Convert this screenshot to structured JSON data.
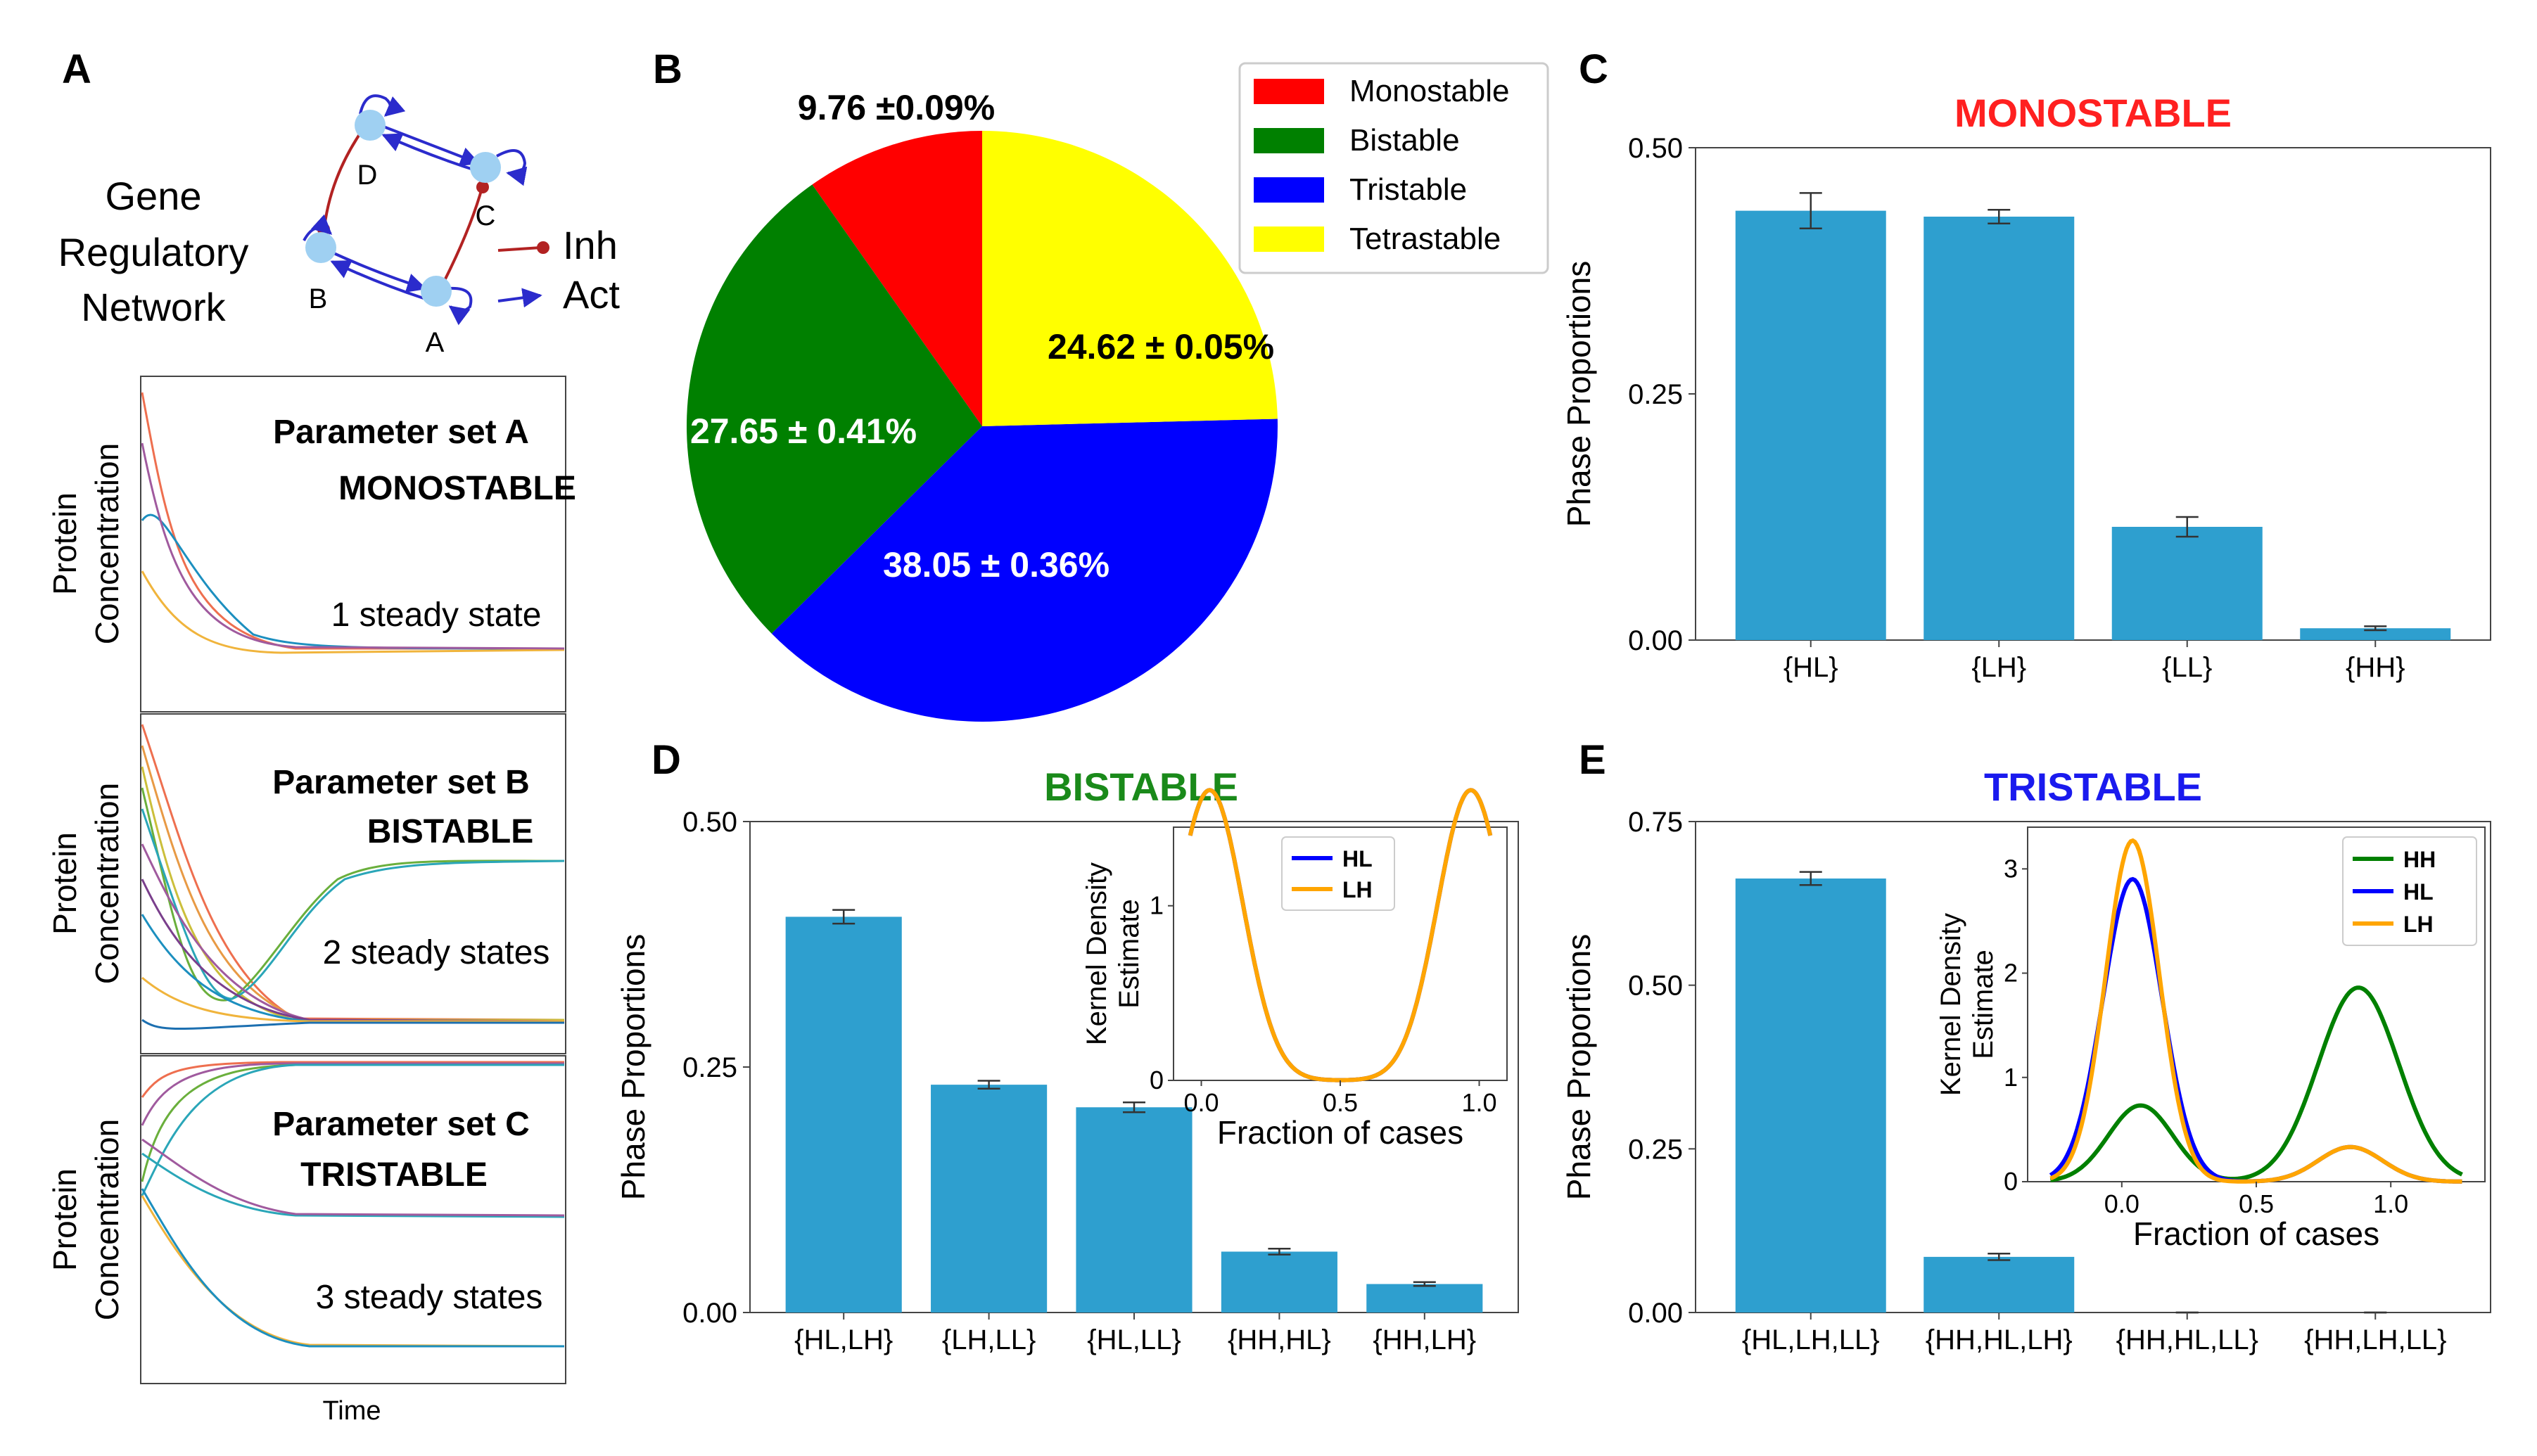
{
  "colors": {
    "bar": "#2e9fcf",
    "red": "#ff0000",
    "green": "#008000",
    "blue": "#0000ff",
    "yellow": "#ffff00",
    "orange": "#ffa500",
    "title_red": "#ff2020",
    "title_green": "#1a8a1a",
    "title_blue": "#1a1aee",
    "node": "#9fd0f2",
    "inh": "#b22222",
    "act": "#2b2bcc"
  },
  "panelA": {
    "label": "A",
    "network_title_lines": [
      "Gene",
      "Regulatory",
      "Network"
    ],
    "nodes": [
      "D",
      "C",
      "B",
      "A"
    ],
    "legend_inh": "Inh",
    "legend_act": "Act",
    "subpanels": [
      {
        "param": "Parameter set A",
        "type": "MONOSTABLE",
        "states": "1 steady state"
      },
      {
        "param": "Parameter set B",
        "type": "BISTABLE",
        "states": "2 steady states"
      },
      {
        "param": "Parameter set C",
        "type": "TRISTABLE",
        "states": "3 steady states"
      }
    ],
    "ylabel_lines": [
      "Protein",
      "Concentration"
    ],
    "xlabel": "Time"
  },
  "chart_data": [
    {
      "id": "B",
      "type": "pie",
      "label": "B",
      "slices": [
        {
          "name": "Monostable",
          "value": 9.76,
          "label": "9.76 ±0.09%"
        },
        {
          "name": "Bistable",
          "value": 27.65,
          "label": "27.65 ± 0.41%"
        },
        {
          "name": "Tristable",
          "value": 38.05,
          "label": "38.05 ± 0.36%"
        },
        {
          "name": "Tetrastable",
          "value": 24.62,
          "label": "24.62 ± 0.05%"
        }
      ],
      "legend": [
        "Monostable",
        "Bistable",
        "Tristable",
        "Tetrastable"
      ],
      "legend_position": "top-right"
    },
    {
      "id": "C",
      "type": "bar",
      "label": "C",
      "title": "MONOSTABLE",
      "ylabel": "Phase Proportions",
      "categories": [
        "{HL}",
        "{LH}",
        "{LL}",
        "{HH}"
      ],
      "values": [
        0.436,
        0.43,
        0.115,
        0.012
      ],
      "errors": [
        0.018,
        0.007,
        0.01,
        0.002
      ],
      "ylim": [
        0,
        0.5
      ],
      "yticks": [
        "0.00",
        "0.25",
        "0.50"
      ]
    },
    {
      "id": "D",
      "type": "bar",
      "label": "D",
      "title": "BISTABLE",
      "ylabel": "Phase Proportions",
      "categories": [
        "{HL,LH}",
        "{LH,LL}",
        "{HL,LL}",
        "{HH,HL}",
        "{HH,LH}"
      ],
      "values": [
        0.403,
        0.232,
        0.209,
        0.062,
        0.029
      ],
      "errors": [
        0.007,
        0.004,
        0.005,
        0.003,
        0.002
      ],
      "ylim": [
        0,
        0.5
      ],
      "yticks": [
        "0.00",
        "0.25",
        "0.50"
      ],
      "inset": {
        "type": "line",
        "xlabel": "Fraction of cases",
        "ylabel_lines": [
          "Kernel Density",
          "Estimate"
        ],
        "xlim": [
          -0.1,
          1.1
        ],
        "ylim": [
          0,
          1.45
        ],
        "xticks": [
          "0.0",
          "0.5",
          "1.0"
        ],
        "yticks": [
          "0",
          "1"
        ],
        "legend_position": "top-center",
        "series": [
          {
            "name": "HL",
            "color": "#0000ff",
            "components": [
              [
                0.03,
                0.12,
                0.5
              ],
              [
                0.97,
                0.12,
                0.5
              ]
            ]
          },
          {
            "name": "LH",
            "color": "#ffa500",
            "components": [
              [
                0.03,
                0.12,
                0.5
              ],
              [
                0.97,
                0.12,
                0.5
              ]
            ]
          }
        ]
      }
    },
    {
      "id": "E",
      "type": "bar",
      "label": "E",
      "title": "TRISTABLE",
      "ylabel": "Phase Proportions",
      "categories": [
        "{HL,LH,LL}",
        "{HH,HL,LH}",
        "{HH,HL,LL}",
        "{HH,LH,LL}"
      ],
      "values": [
        0.663,
        0.085,
        0.0,
        0.0
      ],
      "errors": [
        0.01,
        0.005,
        0.0,
        0.0
      ],
      "ylim": [
        0,
        0.75
      ],
      "yticks": [
        "0.00",
        "0.25",
        "0.50",
        "0.75"
      ],
      "inset": {
        "type": "line",
        "xlabel": "Fraction of cases",
        "ylabel_lines": [
          "Kernel Density",
          "Estimate"
        ],
        "xlim": [
          -0.35,
          1.35
        ],
        "ylim": [
          0,
          3.4
        ],
        "xticks": [
          "0.0",
          "0.5",
          "1.0"
        ],
        "yticks": [
          "0",
          "1",
          "2",
          "3"
        ],
        "legend_position": "top-right",
        "series": [
          {
            "name": "HH",
            "color": "#008000",
            "components": [
              [
                0.07,
                0.12,
                0.22
              ],
              [
                0.88,
                0.15,
                0.7
              ]
            ]
          },
          {
            "name": "HL",
            "color": "#0000ff",
            "components": [
              [
                0.04,
                0.11,
                0.8
              ],
              [
                0.85,
                0.12,
                0.1
              ]
            ]
          },
          {
            "name": "LH",
            "color": "#ffa500",
            "components": [
              [
                0.04,
                0.1,
                0.82
              ],
              [
                0.85,
                0.12,
                0.1
              ]
            ]
          }
        ]
      }
    }
  ]
}
